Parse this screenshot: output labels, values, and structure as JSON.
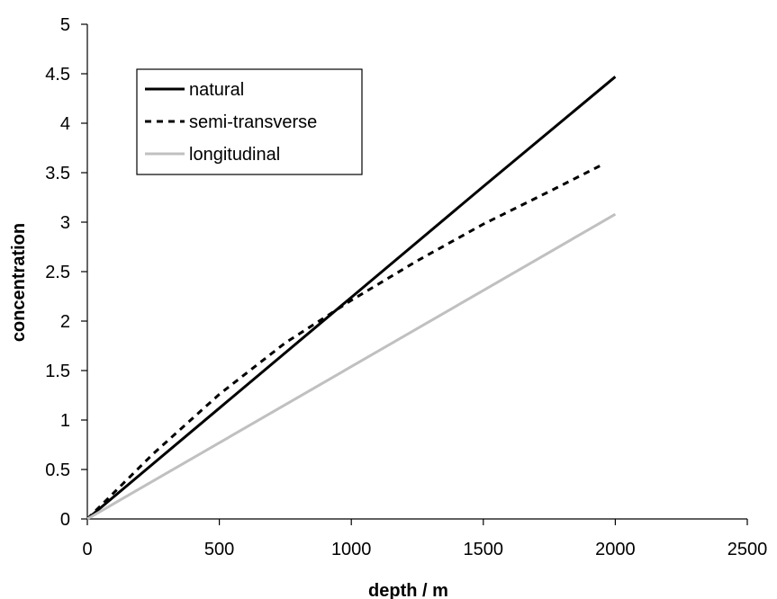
{
  "chart_data": {
    "type": "line",
    "title": "",
    "xlabel": "depth / m",
    "ylabel": "concentration",
    "xlim": [
      0,
      2500
    ],
    "ylim": [
      0,
      5
    ],
    "xticks": [
      0,
      500,
      1000,
      1500,
      2000,
      2500
    ],
    "yticks": [
      0,
      0.5,
      1,
      1.5,
      2,
      2.5,
      3,
      3.5,
      4,
      4.5,
      5
    ],
    "grid": false,
    "legend_position": "top-left",
    "series": [
      {
        "name": "natural",
        "color": "#000000",
        "style": "solid",
        "x": [
          0,
          500,
          1000,
          1500,
          2000
        ],
        "y": [
          0,
          1.12,
          2.24,
          3.36,
          4.47
        ]
      },
      {
        "name": "semi-transverse",
        "color": "#000000",
        "style": "dashed",
        "x": [
          0,
          250,
          500,
          750,
          1000,
          1250,
          1500,
          1750,
          1950
        ],
        "y": [
          0,
          0.66,
          1.26,
          1.78,
          2.21,
          2.61,
          2.98,
          3.31,
          3.58
        ]
      },
      {
        "name": "longitudinal",
        "color": "#c0c0c0",
        "style": "solid",
        "x": [
          0,
          500,
          1000,
          1500,
          2000
        ],
        "y": [
          0,
          0.77,
          1.54,
          2.31,
          3.08
        ]
      }
    ]
  }
}
